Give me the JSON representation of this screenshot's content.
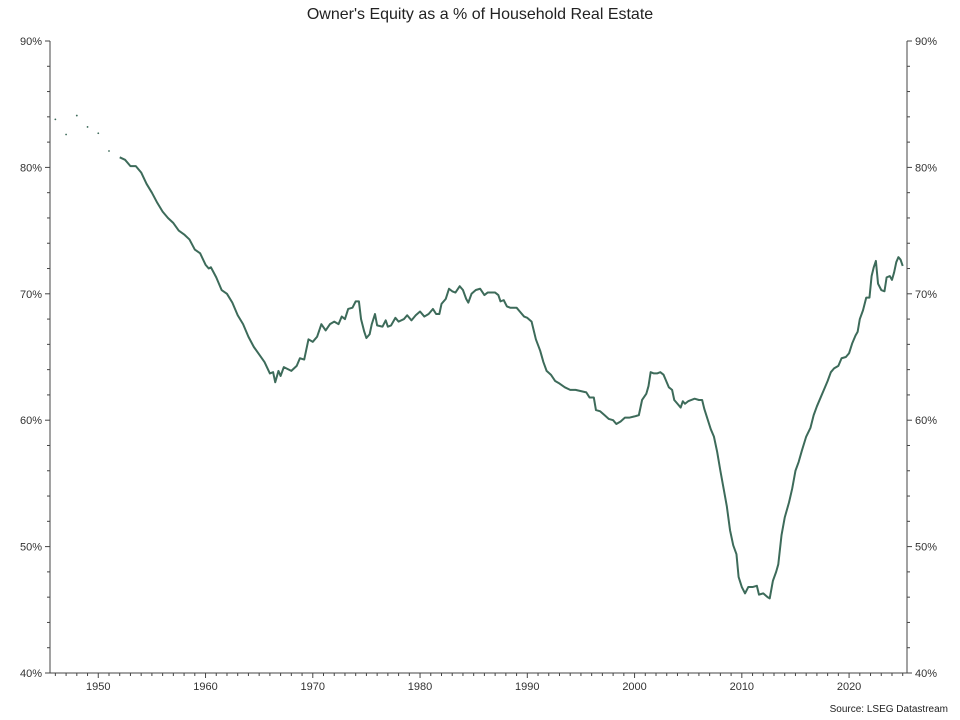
{
  "chart_data": {
    "type": "line",
    "title": "Owner's Equity as a % of Household Real Estate",
    "source": "Source: LSEG Datastream",
    "xlim": [
      1945.5,
      2025.4
    ],
    "ylim": [
      40,
      90
    ],
    "y_ticks": [
      40,
      50,
      60,
      70,
      80,
      90
    ],
    "y_tick_labels": [
      "40%",
      "50%",
      "60%",
      "70%",
      "80%",
      "90%"
    ],
    "x_ticks": [
      1950,
      1960,
      1970,
      1980,
      1990,
      2000,
      2010,
      2020
    ],
    "x_tick_labels": [
      "1950",
      "1960",
      "1970",
      "1980",
      "1990",
      "2000",
      "2010",
      "2020"
    ],
    "grid": false,
    "axes": "left-right-bottom",
    "line_color": "#3d6b5a",
    "series": [
      {
        "style": "dotted",
        "points": [
          [
            1946.0,
            83.8
          ],
          [
            1947.0,
            82.6
          ],
          [
            1948.0,
            84.1
          ],
          [
            1949.0,
            83.2
          ],
          [
            1950.0,
            82.7
          ],
          [
            1951.0,
            81.3
          ]
        ]
      },
      {
        "style": "solid",
        "points": [
          [
            1952.0,
            80.8
          ],
          [
            1952.5,
            80.6
          ],
          [
            1953.0,
            80.1
          ],
          [
            1953.5,
            80.1
          ],
          [
            1954.0,
            79.6
          ],
          [
            1954.5,
            78.7
          ],
          [
            1955.0,
            78.0
          ],
          [
            1955.5,
            77.2
          ],
          [
            1956.0,
            76.5
          ],
          [
            1956.5,
            76.0
          ],
          [
            1957.0,
            75.6
          ],
          [
            1957.5,
            75.0
          ],
          [
            1958.0,
            74.7
          ],
          [
            1958.5,
            74.3
          ],
          [
            1959.0,
            73.5
          ],
          [
            1959.5,
            73.2
          ],
          [
            1960.0,
            72.3
          ],
          [
            1960.3,
            72.0
          ],
          [
            1960.5,
            72.1
          ],
          [
            1961.0,
            71.3
          ],
          [
            1961.5,
            70.3
          ],
          [
            1962.0,
            70.0
          ],
          [
            1962.5,
            69.3
          ],
          [
            1963.0,
            68.3
          ],
          [
            1963.5,
            67.6
          ],
          [
            1964.0,
            66.6
          ],
          [
            1964.5,
            65.8
          ],
          [
            1965.0,
            65.2
          ],
          [
            1965.5,
            64.6
          ],
          [
            1966.0,
            63.7
          ],
          [
            1966.3,
            63.8
          ],
          [
            1966.5,
            63.0
          ],
          [
            1966.8,
            63.9
          ],
          [
            1967.0,
            63.5
          ],
          [
            1967.3,
            64.2
          ],
          [
            1968.0,
            63.9
          ],
          [
            1968.5,
            64.3
          ],
          [
            1968.8,
            64.9
          ],
          [
            1969.2,
            64.8
          ],
          [
            1969.6,
            66.4
          ],
          [
            1970.0,
            66.2
          ],
          [
            1970.4,
            66.6
          ],
          [
            1970.8,
            67.6
          ],
          [
            1971.2,
            67.1
          ],
          [
            1971.6,
            67.6
          ],
          [
            1972.0,
            67.8
          ],
          [
            1972.4,
            67.6
          ],
          [
            1972.7,
            68.2
          ],
          [
            1973.0,
            68.0
          ],
          [
            1973.3,
            68.8
          ],
          [
            1973.7,
            68.9
          ],
          [
            1974.0,
            69.4
          ],
          [
            1974.3,
            69.4
          ],
          [
            1974.5,
            68.0
          ],
          [
            1974.8,
            67.0
          ],
          [
            1975.0,
            66.5
          ],
          [
            1975.3,
            66.8
          ],
          [
            1975.5,
            67.6
          ],
          [
            1975.8,
            68.4
          ],
          [
            1976.0,
            67.5
          ],
          [
            1976.5,
            67.4
          ],
          [
            1976.8,
            67.9
          ],
          [
            1977.0,
            67.4
          ],
          [
            1977.3,
            67.5
          ],
          [
            1977.7,
            68.1
          ],
          [
            1978.0,
            67.8
          ],
          [
            1978.5,
            68.0
          ],
          [
            1978.8,
            68.3
          ],
          [
            1979.2,
            67.9
          ],
          [
            1979.6,
            68.3
          ],
          [
            1980.0,
            68.6
          ],
          [
            1980.4,
            68.2
          ],
          [
            1980.8,
            68.4
          ],
          [
            1981.2,
            68.8
          ],
          [
            1981.5,
            68.4
          ],
          [
            1981.8,
            68.4
          ],
          [
            1982.0,
            69.2
          ],
          [
            1982.4,
            69.6
          ],
          [
            1982.7,
            70.4
          ],
          [
            1983.0,
            70.2
          ],
          [
            1983.3,
            70.1
          ],
          [
            1983.7,
            70.6
          ],
          [
            1984.0,
            70.3
          ],
          [
            1984.3,
            69.6
          ],
          [
            1984.5,
            69.3
          ],
          [
            1984.8,
            70.0
          ],
          [
            1985.2,
            70.3
          ],
          [
            1985.6,
            70.4
          ],
          [
            1986.0,
            69.9
          ],
          [
            1986.3,
            70.1
          ],
          [
            1986.7,
            70.1
          ],
          [
            1987.0,
            70.1
          ],
          [
            1987.3,
            69.9
          ],
          [
            1987.5,
            69.4
          ],
          [
            1987.8,
            69.5
          ],
          [
            1988.1,
            69.0
          ],
          [
            1988.4,
            68.9
          ],
          [
            1989.0,
            68.9
          ],
          [
            1989.3,
            68.6
          ],
          [
            1989.7,
            68.2
          ],
          [
            1990.0,
            68.1
          ],
          [
            1990.4,
            67.8
          ],
          [
            1990.8,
            66.4
          ],
          [
            1991.2,
            65.5
          ],
          [
            1991.5,
            64.6
          ],
          [
            1991.8,
            63.9
          ],
          [
            1992.2,
            63.6
          ],
          [
            1992.6,
            63.1
          ],
          [
            1993.0,
            62.9
          ],
          [
            1993.5,
            62.6
          ],
          [
            1994.0,
            62.4
          ],
          [
            1994.5,
            62.4
          ],
          [
            1995.0,
            62.3
          ],
          [
            1995.5,
            62.2
          ],
          [
            1995.8,
            61.8
          ],
          [
            1996.2,
            61.8
          ],
          [
            1996.4,
            60.8
          ],
          [
            1996.8,
            60.7
          ],
          [
            1997.2,
            60.4
          ],
          [
            1997.6,
            60.1
          ],
          [
            1998.0,
            60.0
          ],
          [
            1998.3,
            59.7
          ],
          [
            1998.7,
            59.9
          ],
          [
            1999.1,
            60.2
          ],
          [
            1999.5,
            60.2
          ],
          [
            2000.0,
            60.3
          ],
          [
            2000.4,
            60.4
          ],
          [
            2000.7,
            61.6
          ],
          [
            2001.1,
            62.1
          ],
          [
            2001.3,
            62.7
          ],
          [
            2001.5,
            63.8
          ],
          [
            2001.8,
            63.7
          ],
          [
            2002.1,
            63.7
          ],
          [
            2002.4,
            63.8
          ],
          [
            2002.7,
            63.6
          ],
          [
            2002.9,
            63.2
          ],
          [
            2003.2,
            62.6
          ],
          [
            2003.5,
            62.4
          ],
          [
            2003.7,
            61.6
          ],
          [
            2004.0,
            61.3
          ],
          [
            2004.3,
            61.0
          ],
          [
            2004.5,
            61.5
          ],
          [
            2004.7,
            61.3
          ],
          [
            2005.0,
            61.5
          ],
          [
            2005.3,
            61.6
          ],
          [
            2005.6,
            61.7
          ],
          [
            2006.0,
            61.6
          ],
          [
            2006.3,
            61.6
          ],
          [
            2006.5,
            60.9
          ],
          [
            2006.8,
            60.1
          ],
          [
            2007.1,
            59.3
          ],
          [
            2007.4,
            58.7
          ],
          [
            2007.7,
            57.5
          ],
          [
            2008.0,
            56.0
          ],
          [
            2008.3,
            54.6
          ],
          [
            2008.6,
            53.2
          ],
          [
            2008.9,
            51.3
          ],
          [
            2009.2,
            50.1
          ],
          [
            2009.5,
            49.4
          ],
          [
            2009.7,
            47.6
          ],
          [
            2010.0,
            46.8
          ],
          [
            2010.3,
            46.3
          ],
          [
            2010.6,
            46.8
          ],
          [
            2011.0,
            46.8
          ],
          [
            2011.4,
            46.9
          ],
          [
            2011.6,
            46.2
          ],
          [
            2012.0,
            46.3
          ],
          [
            2012.4,
            46.0
          ],
          [
            2012.6,
            45.9
          ],
          [
            2012.9,
            47.3
          ],
          [
            2013.2,
            48.0
          ],
          [
            2013.4,
            48.6
          ],
          [
            2013.7,
            50.9
          ],
          [
            2014.0,
            52.3
          ],
          [
            2014.4,
            53.5
          ],
          [
            2014.7,
            54.6
          ],
          [
            2015.0,
            56.0
          ],
          [
            2015.3,
            56.7
          ],
          [
            2015.6,
            57.6
          ],
          [
            2016.0,
            58.7
          ],
          [
            2016.4,
            59.4
          ],
          [
            2016.7,
            60.4
          ],
          [
            2017.0,
            61.1
          ],
          [
            2017.4,
            61.9
          ],
          [
            2017.7,
            62.5
          ],
          [
            2018.0,
            63.1
          ],
          [
            2018.3,
            63.8
          ],
          [
            2018.6,
            64.1
          ],
          [
            2019.0,
            64.3
          ],
          [
            2019.3,
            64.9
          ],
          [
            2019.7,
            65.0
          ],
          [
            2020.0,
            65.3
          ],
          [
            2020.3,
            66.1
          ],
          [
            2020.6,
            66.7
          ],
          [
            2020.8,
            67.0
          ],
          [
            2021.0,
            68.0
          ],
          [
            2021.3,
            68.7
          ],
          [
            2021.6,
            69.7
          ],
          [
            2021.9,
            69.7
          ],
          [
            2022.1,
            71.4
          ],
          [
            2022.3,
            72.1
          ],
          [
            2022.5,
            72.6
          ],
          [
            2022.7,
            70.8
          ],
          [
            2023.0,
            70.3
          ],
          [
            2023.3,
            70.2
          ],
          [
            2023.5,
            71.3
          ],
          [
            2023.8,
            71.4
          ],
          [
            2024.0,
            71.1
          ],
          [
            2024.2,
            71.7
          ],
          [
            2024.4,
            72.5
          ],
          [
            2024.6,
            72.9
          ],
          [
            2024.8,
            72.7
          ],
          [
            2025.0,
            72.2
          ]
        ]
      }
    ]
  }
}
